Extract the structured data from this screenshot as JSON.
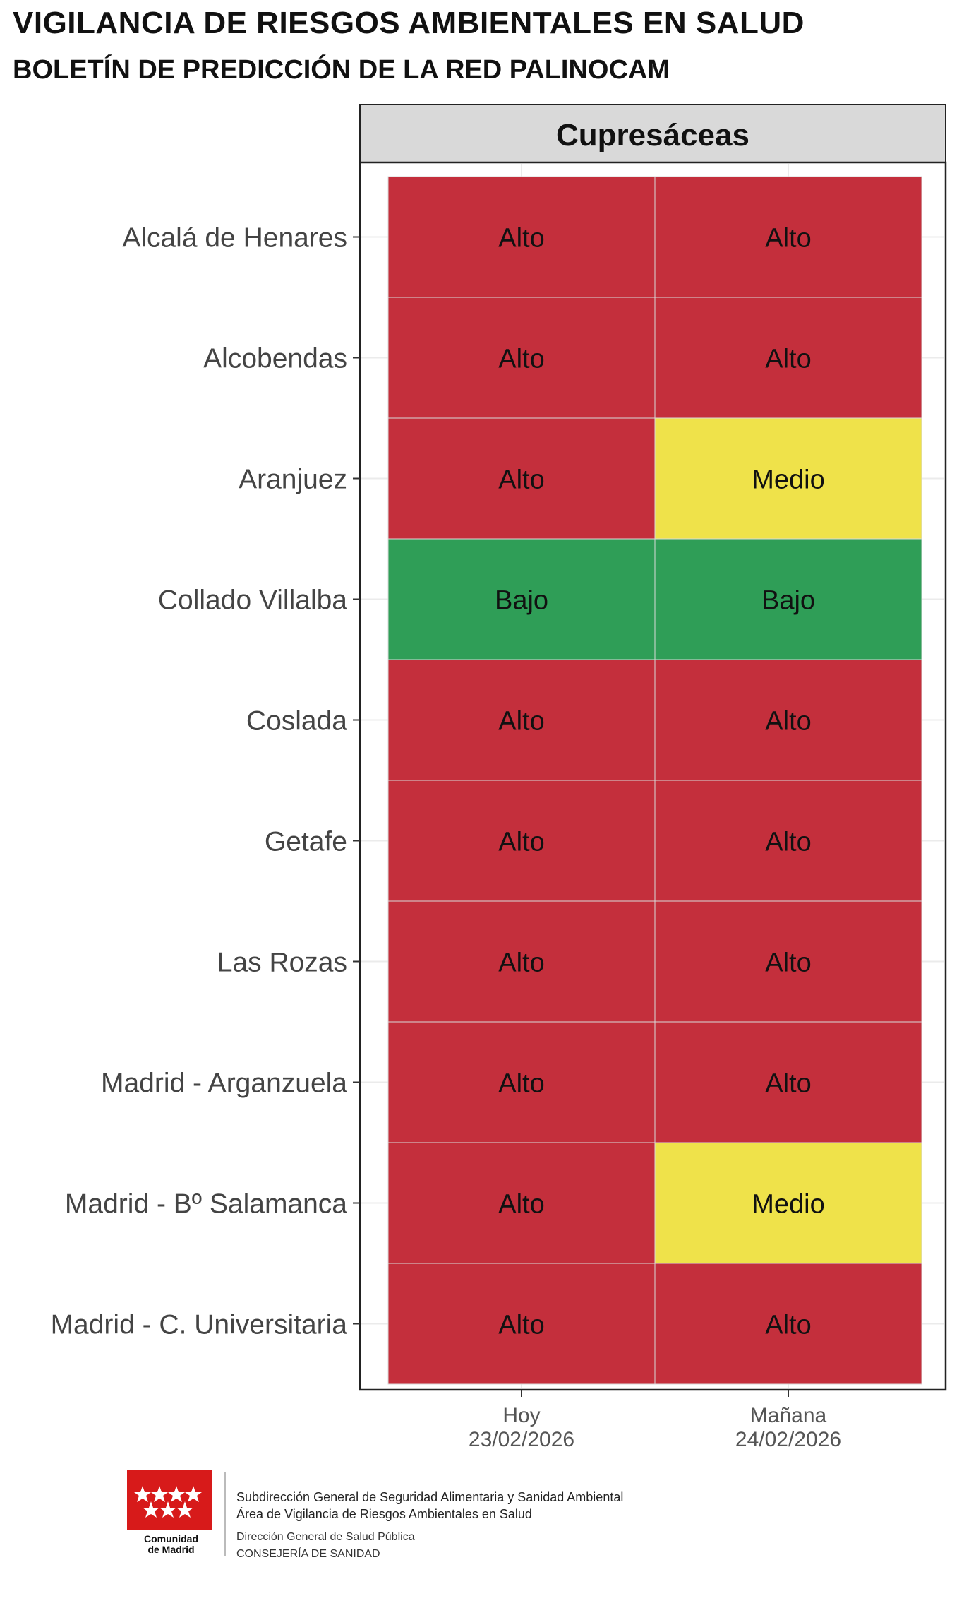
{
  "header": {
    "title": "VIGILANCIA DE RIESGOS AMBIENTALES EN SALUD",
    "subtitle": "BOLETÍN DE PREDICCIÓN DE LA RED PALINOCAM"
  },
  "chart_data": {
    "type": "heatmap",
    "panel_title": "Cupresáceas",
    "rows": [
      "Alcalá de Henares",
      "Alcobendas",
      "Aranjuez",
      "Collado Villalba",
      "Coslada",
      "Getafe",
      "Las Rozas",
      "Madrid - Arganzuela",
      "Madrid - Bº Salamanca",
      "Madrid - C. Universitaria"
    ],
    "columns": [
      {
        "label": "Hoy",
        "date": "23/02/2026"
      },
      {
        "label": "Mañana",
        "date": "24/02/2026"
      }
    ],
    "values": [
      [
        "Alto",
        "Alto"
      ],
      [
        "Alto",
        "Alto"
      ],
      [
        "Alto",
        "Medio"
      ],
      [
        "Bajo",
        "Bajo"
      ],
      [
        "Alto",
        "Alto"
      ],
      [
        "Alto",
        "Alto"
      ],
      [
        "Alto",
        "Alto"
      ],
      [
        "Alto",
        "Alto"
      ],
      [
        "Alto",
        "Medio"
      ],
      [
        "Alto",
        "Alto"
      ]
    ],
    "level_colors": {
      "Alto": "#c42f3c",
      "Medio": "#efe24a",
      "Bajo": "#2f9e57"
    }
  },
  "logo": {
    "caption_line1": "Comunidad",
    "caption_line2": "de Madrid"
  },
  "footer": {
    "line1": "Subdirección General de Seguridad Alimentaria y  Sanidad Ambiental",
    "line2": "Área de Vigilancia de Riesgos  Ambientales en Salud",
    "line3": "Dirección General de Salud Pública",
    "line4": "CONSEJERÍA DE SANIDAD"
  }
}
